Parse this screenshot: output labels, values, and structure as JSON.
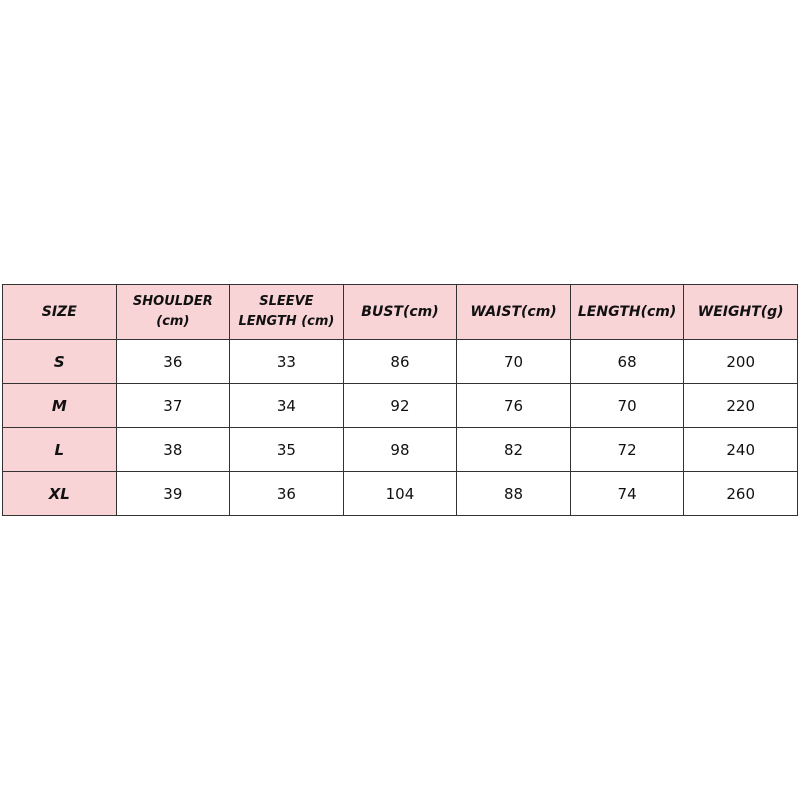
{
  "table": {
    "headers": [
      {
        "line1": "SIZE",
        "line2": ""
      },
      {
        "line1": "SHOULDER",
        "line2": "(cm)"
      },
      {
        "line1": "SLEEVE",
        "line2": "LENGTH (cm)"
      },
      {
        "line1": "BUST(cm)",
        "line2": ""
      },
      {
        "line1": "WAIST(cm)",
        "line2": ""
      },
      {
        "line1": "LENGTH(cm)",
        "line2": ""
      },
      {
        "line1": "WEIGHT(g)",
        "line2": ""
      }
    ],
    "rows": [
      [
        "S",
        "36",
        "33",
        "86",
        "70",
        "68",
        "200"
      ],
      [
        "M",
        "37",
        "34",
        "92",
        "76",
        "70",
        "220"
      ],
      [
        "L",
        "38",
        "35",
        "98",
        "82",
        "72",
        "240"
      ],
      [
        "XL",
        "39",
        "36",
        "104",
        "88",
        "74",
        "260"
      ]
    ]
  },
  "colors": {
    "header_bg": "#f9d4d7",
    "border": "#333333"
  }
}
